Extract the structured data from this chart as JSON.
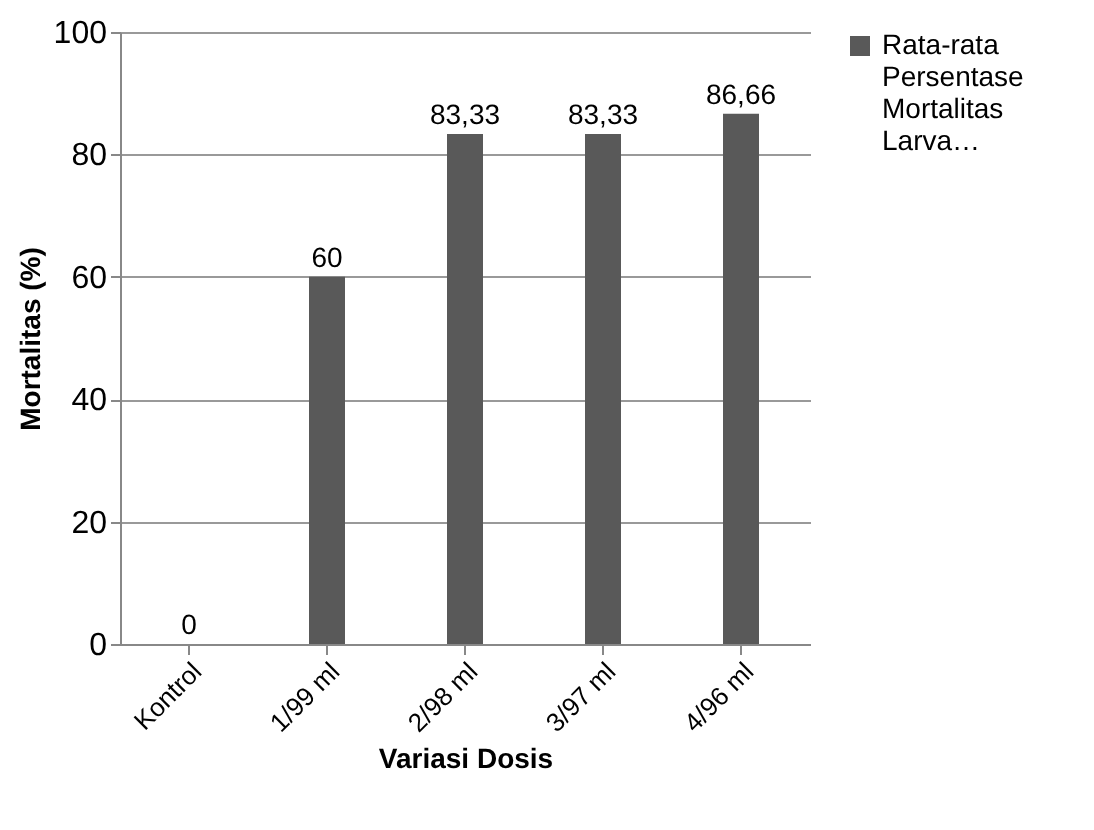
{
  "chart_data": {
    "type": "bar",
    "xlabel": "Variasi Dosis",
    "ylabel": "Mortalitas (%)",
    "categories": [
      "Kontrol",
      "1/99 ml",
      "2/98 ml",
      "3/97 ml",
      "4/96 ml"
    ],
    "series": [
      {
        "name": "Rata-rata Persentase Mortalitas Larva…",
        "color": "#595959",
        "values": [
          0,
          60,
          83.33,
          83.33,
          86.66
        ],
        "value_labels": [
          "0",
          "60",
          "83,33",
          "83,33",
          "86,66"
        ]
      }
    ],
    "ylim": [
      0,
      100
    ],
    "yticks": [
      0,
      20,
      40,
      60,
      80,
      100
    ],
    "grid": "y",
    "legend": "right"
  }
}
